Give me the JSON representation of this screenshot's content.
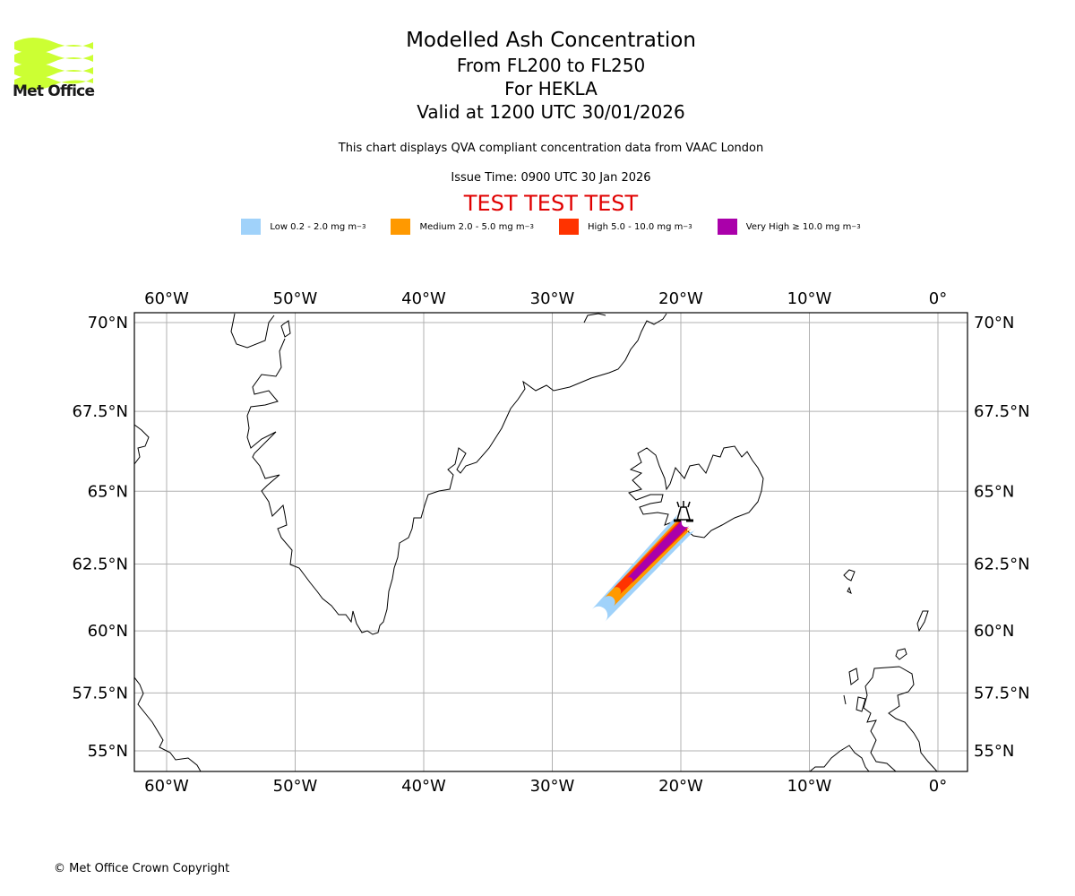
{
  "logo": {
    "text": "Met Office",
    "icon": "met-office-waves-icon",
    "color": "#ccff33"
  },
  "header": {
    "title": "Modelled Ash Concentration",
    "levels": "From FL200 to FL250",
    "volcano": "For HEKLA",
    "valid": "Valid at 1200 UTC 30/01/2026",
    "description": "This chart displays QVA compliant concentration data from VAAC London",
    "issue_time": "Issue Time: 0900 UTC 30 Jan 2026",
    "test_banner": "TEST TEST TEST"
  },
  "legend": [
    {
      "label": "Low 0.2 - 2.0 mg m",
      "unit_exp": "−3",
      "color": "#a0d2fa"
    },
    {
      "label": "Medium 2.0 - 5.0 mg m",
      "unit_exp": "−3",
      "color": "#ff9900"
    },
    {
      "label": "High 5.0 - 10.0 mg m",
      "unit_exp": "−3",
      "color": "#ff3300"
    },
    {
      "label": "Very High ≥ 10.0 mg m",
      "unit_exp": "−3",
      "color": "#aa00aa"
    }
  ],
  "map": {
    "lon_ticks": [
      "60°W",
      "50°W",
      "40°W",
      "30°W",
      "20°W",
      "10°W",
      "0°"
    ],
    "lon_values": [
      -60,
      -50,
      -40,
      -30,
      -20,
      -10,
      0
    ],
    "lat_ticks": [
      "70°N",
      "67.5°N",
      "65°N",
      "62.5°N",
      "60°N",
      "57.5°N",
      "55°N"
    ],
    "lat_values": [
      70,
      67.5,
      65,
      62.5,
      60,
      57.5,
      55
    ],
    "extent": {
      "lon_min": -62.5,
      "lon_max": 2.3,
      "lat_min": 54.3,
      "lat_max": 70.4
    },
    "volcano": {
      "name": "HEKLA",
      "lon": -19.7,
      "lat": 63.98,
      "icon": "volcano-icon"
    },
    "grid_color": "#b0b0b0"
  },
  "chart_data": {
    "type": "map",
    "title": "Modelled Ash Concentration",
    "plume": {
      "source": "HEKLA",
      "source_lat": 63.98,
      "source_lon": -19.7,
      "tail_lat": 60.7,
      "tail_lon": -26.3,
      "bands": [
        {
          "level": "Low",
          "range": "0.2 - 2.0 mg m-3",
          "from_lat": 64.0,
          "to_lat": 60.6,
          "from_lon": -19.5,
          "to_lon": -26.4
        },
        {
          "level": "Medium",
          "range": "2.0 - 5.0 mg m-3",
          "from_lat": 63.95,
          "to_lat": 61.1,
          "from_lon": -19.6,
          "to_lon": -25.6
        },
        {
          "level": "High",
          "range": "5.0 - 10.0 mg m-3",
          "from_lat": 63.95,
          "to_lat": 61.5,
          "from_lon": -19.6,
          "to_lon": -25.0
        },
        {
          "level": "Very High",
          "range": ">= 10.0 mg m-3",
          "from_lat": 63.95,
          "to_lat": 61.9,
          "from_lon": -19.6,
          "to_lon": -24.0
        }
      ]
    },
    "regions_shown": [
      "Greenland",
      "Iceland",
      "Scotland",
      "Faroe Islands",
      "Shetland",
      "Labrador/Baffin coast"
    ]
  },
  "footer": {
    "copyright": "© Met Office Crown Copyright"
  }
}
